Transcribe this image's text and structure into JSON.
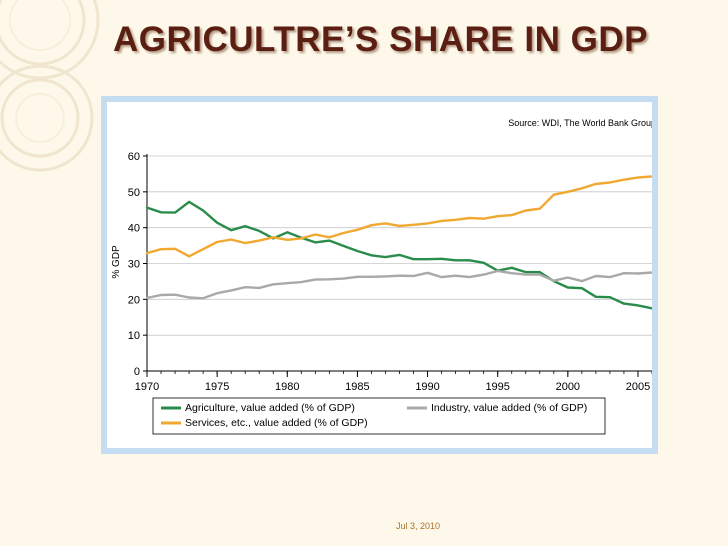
{
  "slide": {
    "title": "AGRICULTRE’S SHARE IN GDP",
    "footer_date": "Jul 3, 2010"
  },
  "colors": {
    "agriculture": "#2a8c4a",
    "industry": "#a9a9a9",
    "services": "#f0a830",
    "title": "#5a1e12",
    "frame": "#c6dcf0"
  },
  "chart_data": {
    "type": "line",
    "source": "Source: WDI, The World Bank Group",
    "ylabel": "% GDP",
    "xlabel": "",
    "xlim": [
      1970,
      2006
    ],
    "ylim": [
      0,
      60
    ],
    "x_ticks": [
      1970,
      1975,
      1980,
      1985,
      1990,
      1995,
      2000,
      2005
    ],
    "y_ticks": [
      0,
      10,
      20,
      30,
      40,
      50,
      60
    ],
    "grid": "horizontal",
    "x": [
      1970,
      1971,
      1972,
      1973,
      1974,
      1975,
      1976,
      1977,
      1978,
      1979,
      1980,
      1981,
      1982,
      1983,
      1984,
      1985,
      1986,
      1987,
      1988,
      1989,
      1990,
      1991,
      1992,
      1993,
      1994,
      1995,
      1996,
      1997,
      1998,
      1999,
      2000,
      2001,
      2002,
      2003,
      2004,
      2005,
      2006
    ],
    "series": [
      {
        "name": "Agriculture, value added (% of GDP)",
        "color_key": "agriculture",
        "values": [
          45.6,
          44.3,
          44.2,
          47.2,
          44.8,
          41.4,
          39.3,
          40.4,
          39.1,
          37.0,
          38.7,
          37.2,
          35.9,
          36.4,
          34.9,
          33.5,
          32.3,
          31.8,
          32.4,
          31.2,
          31.2,
          31.3,
          30.9,
          30.9,
          30.2,
          28.0,
          28.8,
          27.6,
          27.6,
          25.1,
          23.3,
          23.1,
          20.7,
          20.6,
          18.8,
          18.3,
          17.5
        ]
      },
      {
        "name": "Industry, value added (% of GDP)",
        "color_key": "industry",
        "values": [
          20.4,
          21.2,
          21.3,
          20.5,
          20.3,
          21.7,
          22.5,
          23.4,
          23.2,
          24.2,
          24.5,
          24.8,
          25.5,
          25.6,
          25.8,
          26.3,
          26.3,
          26.4,
          26.6,
          26.5,
          27.4,
          26.2,
          26.6,
          26.2,
          26.9,
          27.9,
          27.3,
          26.9,
          26.9,
          25.2,
          26.1,
          25.1,
          26.5,
          26.2,
          27.3,
          27.2,
          27.5
        ]
      },
      {
        "name": "Services, etc., value added (% of GDP)",
        "color_key": "services",
        "values": [
          32.9,
          34.0,
          34.1,
          32.0,
          34.0,
          36.0,
          36.7,
          35.7,
          36.4,
          37.3,
          36.6,
          37.0,
          38.1,
          37.3,
          38.5,
          39.4,
          40.7,
          41.2,
          40.5,
          40.8,
          41.2,
          41.9,
          42.2,
          42.7,
          42.5,
          43.2,
          43.5,
          44.8,
          45.3,
          49.2,
          50.0,
          51.0,
          52.2,
          52.6,
          53.4,
          54.0,
          54.3
        ]
      }
    ],
    "legend": {
      "placement": "bottom",
      "entries": [
        "Agriculture, value added (% of GDP)",
        "Industry, value added (% of GDP)",
        "Services, etc., value added (% of GDP)"
      ]
    }
  }
}
